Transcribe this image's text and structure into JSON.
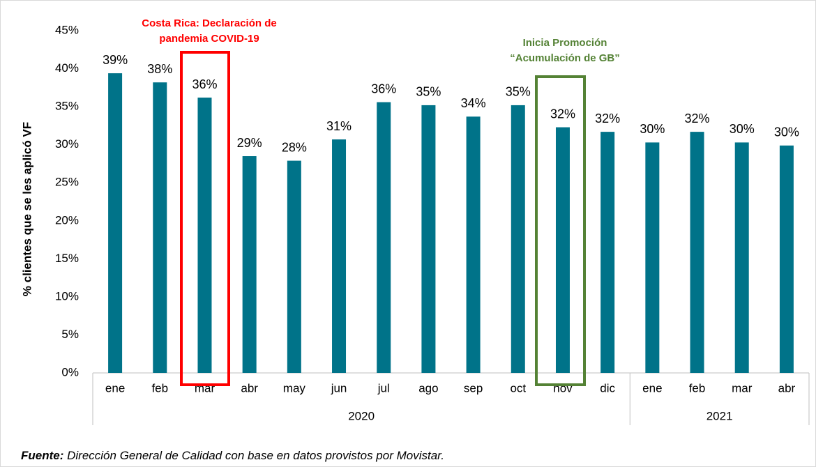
{
  "chart_data": {
    "type": "bar",
    "y_label": "% clientes que se les aplicó VF",
    "groups": [
      {
        "name": "2020",
        "categories": [
          "ene",
          "feb",
          "mar",
          "abr",
          "may",
          "jun",
          "jul",
          "ago",
          "sep",
          "oct",
          "nov",
          "dic"
        ]
      },
      {
        "name": "2021",
        "categories": [
          "ene",
          "feb",
          "mar",
          "abr"
        ]
      }
    ],
    "values": [
      39.4,
      38.2,
      36.2,
      28.5,
      27.9,
      30.7,
      35.6,
      35.2,
      33.7,
      35.2,
      32.3,
      31.7,
      30.3,
      31.7,
      30.3,
      29.9
    ],
    "value_labels": [
      "39%",
      "38%",
      "36%",
      "29%",
      "28%",
      "31%",
      "36%",
      "35%",
      "34%",
      "35%",
      "32%",
      "32%",
      "30%",
      "32%",
      "30%",
      "30%"
    ],
    "color": "#007389",
    "ylim": [
      0,
      45
    ],
    "yticks": [
      {
        "value": 0,
        "label": "0%"
      },
      {
        "value": 5,
        "label": "5%"
      },
      {
        "value": 10,
        "label": "10%"
      },
      {
        "value": 15,
        "label": "15%"
      },
      {
        "value": 20,
        "label": "20%"
      },
      {
        "value": 25,
        "label": "25%"
      },
      {
        "value": 30,
        "label": "30%"
      },
      {
        "value": 35,
        "label": "35%"
      },
      {
        "value": 40,
        "label": "40%"
      },
      {
        "value": 45,
        "label": "45%"
      }
    ],
    "grid": false,
    "annotations": [
      {
        "lines": [
          "Costa Rica: Declaración de",
          "pandemia COVID-19"
        ],
        "color": "#ff0000"
      },
      {
        "lines": [
          "Inicia Promoción",
          "“Acumulación de GB”"
        ],
        "color": "#548235"
      }
    ],
    "source": {
      "label": "Fuente:",
      "text": " Dirección General de Calidad con base en datos provistos por Movistar."
    }
  }
}
